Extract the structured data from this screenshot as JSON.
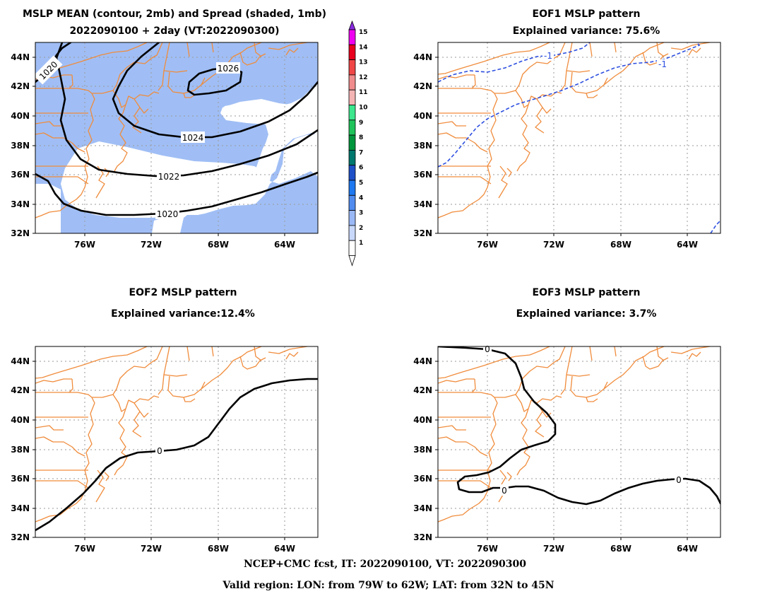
{
  "panels": {
    "mean": {
      "title_line1": "MSLP MEAN (contour, 2mb) and Spread (shaded, 1mb)",
      "title_line2": "2022090100 + 2day (VT:2022090300)",
      "contour_labels": [
        "1020",
        "1026",
        "1024",
        "1022",
        "1020"
      ]
    },
    "eof1": {
      "title_line1": "EOF1 MSLP pattern",
      "title_line2": "Explained variance: 75.6%",
      "contour_labels": [
        "-1",
        "-1"
      ]
    },
    "eof2": {
      "title_line1": "EOF2 MSLP pattern",
      "title_line2": "Explained variance:12.4%",
      "contour_labels": [
        "0"
      ]
    },
    "eof3": {
      "title_line1": "EOF3 MSLP pattern",
      "title_line2": "Explained variance: 3.7%",
      "contour_labels": [
        "0",
        "0",
        "0"
      ]
    }
  },
  "axes": {
    "lat_labels": [
      "44N",
      "42N",
      "40N",
      "38N",
      "36N",
      "34N",
      "32N"
    ],
    "lon_labels": [
      "76W",
      "72W",
      "68W",
      "64W"
    ]
  },
  "colorbar": {
    "labels": [
      "15",
      "14",
      "13",
      "12",
      "11",
      "10",
      "9",
      "8",
      "7",
      "6",
      "5",
      "4",
      "3",
      "2",
      "1"
    ],
    "colors": [
      "#8a2be2",
      "#f000f0",
      "#e8001e",
      "#f04646",
      "#f08c8c",
      "#f5b4b4",
      "#3ce68c",
      "#1ec35a",
      "#00963c",
      "#00786e",
      "#1e50c8",
      "#1e78f0",
      "#508cf0",
      "#9ab8f5",
      "#c8d8fa",
      "#ffffff"
    ]
  },
  "colors": {
    "spread_shade": "#a0bef5",
    "coastline": "#f08c3c",
    "eof_negative": "#2d4fe0"
  },
  "footer": {
    "line1": "NCEP+CMC fcst, IT: 2022090100, VT: 2022090300",
    "line2": "Valid region: LON: from 79W to 62W; LAT: from 32N to 45N"
  }
}
